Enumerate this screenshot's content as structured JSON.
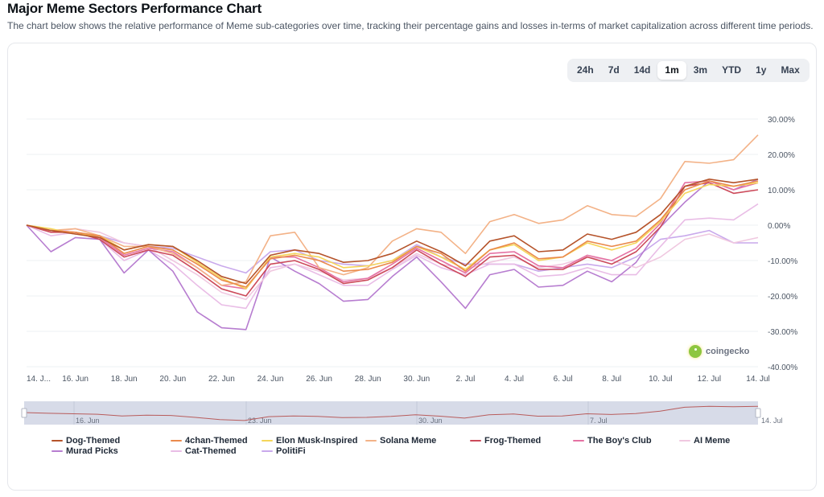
{
  "header": {
    "title": "Major Meme Sectors Performance Chart",
    "subtitle": "The chart below shows the relative performance of Meme sub-categories over time, tracking their percentage gains and losses in-terms of market capitalization across different time periods."
  },
  "ranges": {
    "options": [
      "24h",
      "7d",
      "14d",
      "1m",
      "3m",
      "YTD",
      "1y",
      "Max"
    ],
    "selected": "1m"
  },
  "brand": {
    "label": "coingecko",
    "icon": "coingecko-gecko-icon"
  },
  "navigator": {
    "labels": [
      "16. Jun",
      "23. Jun",
      "30. Jun",
      "7. Jul",
      "14. Jul"
    ],
    "series_color": "#b85c5c",
    "fill_color": "#d7dbe8"
  },
  "chart_data": {
    "type": "line",
    "title": "Major Meme Sectors Performance Chart",
    "xlabel": "",
    "ylabel": "",
    "x": [
      "14 Jun",
      "15 Jun",
      "16 Jun",
      "17 Jun",
      "18 Jun",
      "19 Jun",
      "20 Jun",
      "21 Jun",
      "22 Jun",
      "23 Jun",
      "24 Jun",
      "25 Jun",
      "26 Jun",
      "27 Jun",
      "28 Jun",
      "29 Jun",
      "30 Jun",
      "1 Jul",
      "2 Jul",
      "3 Jul",
      "4 Jul",
      "5 Jul",
      "6 Jul",
      "7 Jul",
      "8 Jul",
      "9 Jul",
      "10 Jul",
      "11 Jul",
      "12 Jul",
      "13 Jul",
      "14 Jul"
    ],
    "x_tick_labels": [
      "14. J...",
      "16. Jun",
      "18. Jun",
      "20. Jun",
      "22. Jun",
      "24. Jun",
      "26. Jun",
      "28. Jun",
      "30. Jun",
      "2. Jul",
      "4. Jul",
      "6. Jul",
      "8. Jul",
      "10. Jul",
      "12. Jul",
      "14. Jul"
    ],
    "y_tick_labels": [
      "30.00%",
      "20.00%",
      "10.00%",
      "0.00%",
      "-10.00%",
      "-20.00%",
      "-30.00%",
      "-40.00%"
    ],
    "ylim": [
      -40,
      30
    ],
    "grid": true,
    "legend_position": "bottom",
    "series": [
      {
        "name": "Dog-Themed",
        "color": "#b5532a",
        "values": [
          0,
          -1.5,
          -2.5,
          -3.5,
          -7,
          -5.5,
          -6,
          -10,
          -14.5,
          -16.5,
          -8.5,
          -7,
          -8,
          -10.5,
          -10,
          -8,
          -4.5,
          -7.5,
          -11.5,
          -4.5,
          -3,
          -7.5,
          -7,
          -2.5,
          -4,
          -2,
          3,
          11,
          13,
          12,
          13
        ]
      },
      {
        "name": "4chan-Themed",
        "color": "#ea8a4c",
        "values": [
          0,
          -1.5,
          -2,
          -3,
          -8,
          -6,
          -7,
          -11,
          -15.5,
          -17.5,
          -9.5,
          -8.5,
          -10,
          -13,
          -12.5,
          -10.5,
          -6,
          -8,
          -13,
          -7,
          -5,
          -9.5,
          -9,
          -4.5,
          -6,
          -4.5,
          1.5,
          10,
          12.5,
          11,
          12.5
        ]
      },
      {
        "name": "Elon Musk-Inspired",
        "color": "#f5d65a",
        "values": [
          0,
          -1,
          -2.5,
          -3,
          -7,
          -5.5,
          -6,
          -10.5,
          -15,
          -18,
          -9,
          -8,
          -9,
          -12,
          -11.5,
          -10,
          -6,
          -9,
          -12.5,
          -7,
          -5.5,
          -10,
          -9,
          -5,
          -7,
          -5,
          1,
          9,
          11.5,
          11,
          12
        ]
      },
      {
        "name": "Solana Meme",
        "color": "#f3b287",
        "values": [
          0,
          -1.5,
          -1,
          -3,
          -6,
          -6,
          -8,
          -12,
          -17,
          -16,
          -3,
          -2,
          -12,
          -14,
          -12,
          -4.5,
          -1,
          -2,
          -8,
          1,
          3,
          0.5,
          1.5,
          5.5,
          3,
          2.5,
          7.5,
          18,
          17.5,
          18.5,
          25.5
        ]
      },
      {
        "name": "Frog-Themed",
        "color": "#cc4a5a",
        "values": [
          0,
          -2,
          -2,
          -4,
          -9,
          -7,
          -8.5,
          -13,
          -18,
          -20,
          -11,
          -10,
          -12.5,
          -16.5,
          -15.5,
          -12,
          -7,
          -11,
          -14.5,
          -9,
          -8.5,
          -12.5,
          -12.5,
          -9,
          -11,
          -7.5,
          -0.5,
          11,
          12,
          9,
          10
        ]
      },
      {
        "name": "The Boy's Club",
        "color": "#e572a3",
        "values": [
          0,
          -1.5,
          -2,
          -3.5,
          -8.5,
          -6.5,
          -7.5,
          -12,
          -17,
          -18,
          -9,
          -9,
          -12,
          -16,
          -15,
          -11,
          -6.5,
          -10,
          -13.5,
          -8,
          -7.5,
          -11.5,
          -12,
          -8.5,
          -10,
          -6.5,
          0.5,
          12,
          12.5,
          10,
          12
        ]
      },
      {
        "name": "AI Meme",
        "color": "#f0c8e0",
        "values": [
          0,
          -2,
          -1,
          -2,
          -5,
          -6,
          -10,
          -14,
          -19,
          -21,
          -13,
          -11,
          -13,
          -15.5,
          -15,
          -12,
          -8,
          -11,
          -12.5,
          -10.5,
          -9,
          -12,
          -11,
          -9,
          -10,
          -12,
          -9,
          -4,
          -2.5,
          -5,
          -3.5
        ]
      },
      {
        "name": "Murad Picks",
        "color": "#b77dd0",
        "values": [
          0,
          -7.5,
          -3.5,
          -4,
          -13.5,
          -7,
          -13,
          -24.5,
          -29,
          -29.5,
          -9,
          -13,
          -16.5,
          -21.5,
          -21,
          -14.5,
          -9,
          -16,
          -23.5,
          -14,
          -12.5,
          -17.5,
          -17,
          -13,
          -16,
          -10.5,
          -0.5,
          6.5,
          12.5,
          10,
          13
        ]
      },
      {
        "name": "Cat-Themed",
        "color": "#e9bde6",
        "values": [
          0,
          -3,
          -2,
          -4,
          -10,
          -7,
          -11,
          -17,
          -22.5,
          -23.5,
          -12,
          -11,
          -14,
          -17,
          -17,
          -12.5,
          -8.5,
          -12,
          -14,
          -11,
          -11,
          -14.5,
          -14,
          -12,
          -14,
          -14,
          -6,
          1.5,
          2,
          1.5,
          6
        ]
      },
      {
        "name": "PolitiFi",
        "color": "#c9a9ec",
        "values": [
          0,
          -1.5,
          -2.5,
          -3,
          -5,
          -6,
          -6.5,
          -9,
          -11.5,
          -13.5,
          -7.5,
          -7,
          -10,
          -11,
          -11.5,
          -10,
          -5.5,
          -9,
          -11,
          -11,
          -11,
          -13,
          -12,
          -11,
          -12,
          -9,
          -4,
          -3,
          -1.5,
          -5,
          -5
        ]
      }
    ]
  }
}
